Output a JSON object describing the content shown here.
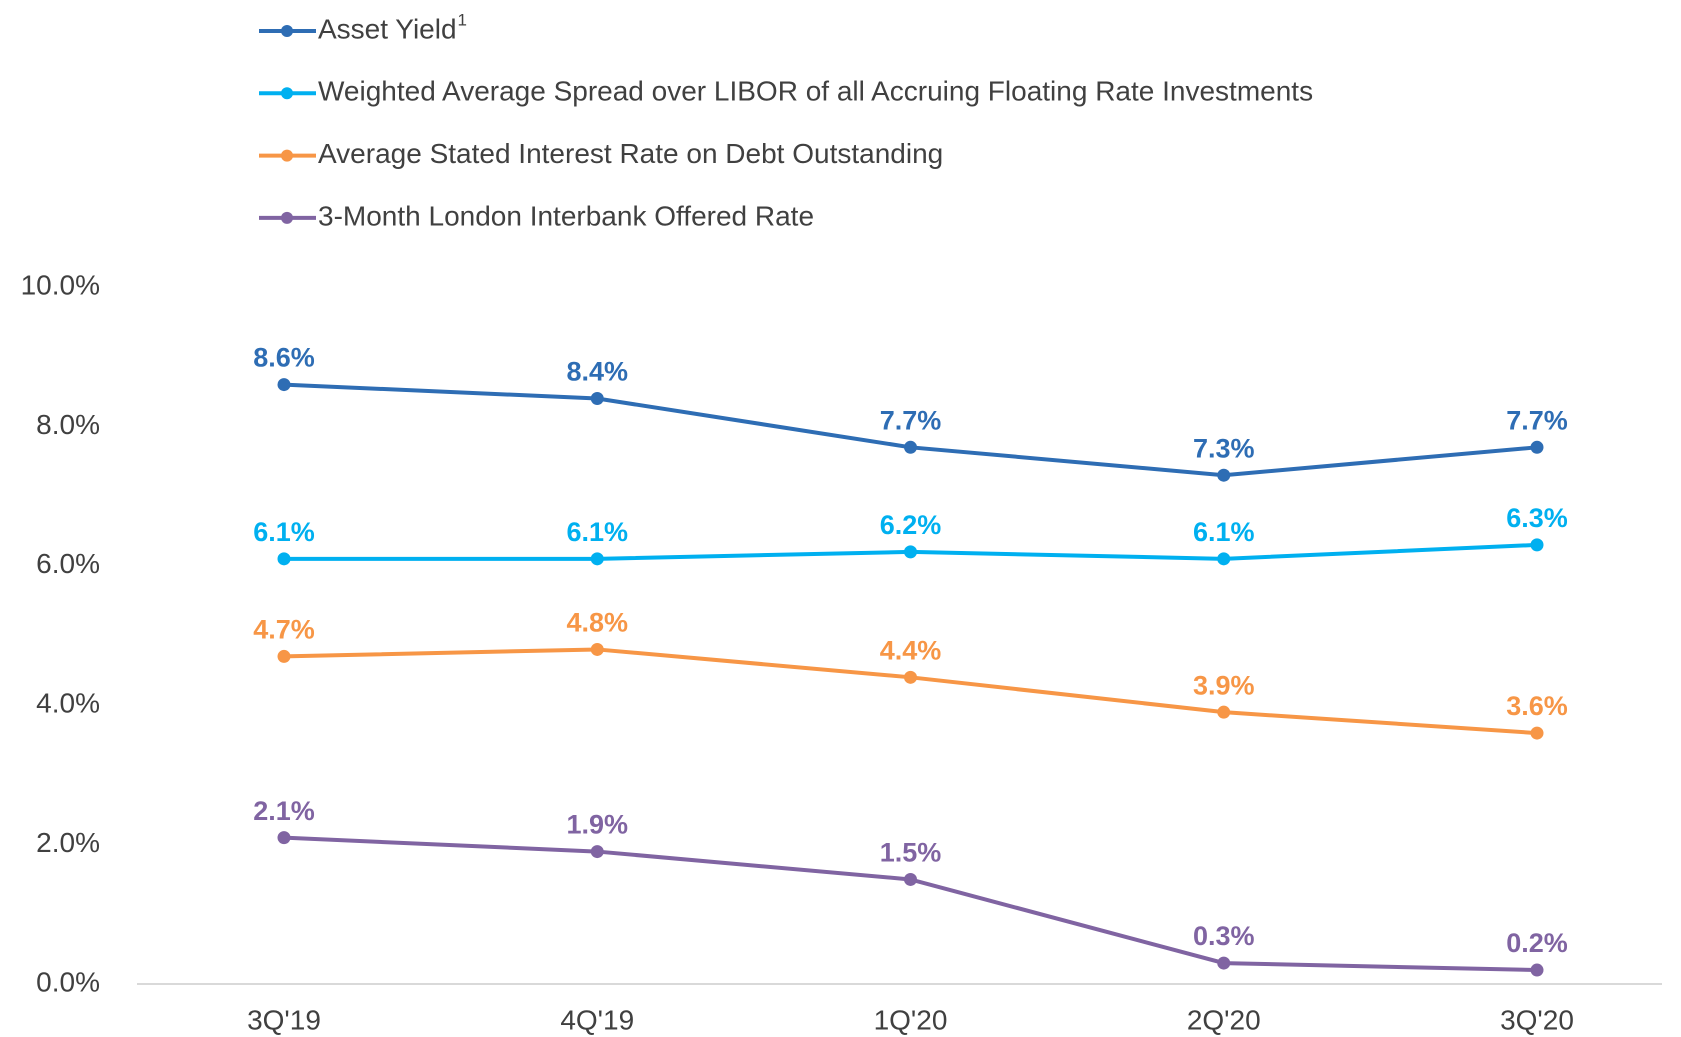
{
  "chart_data": {
    "type": "line",
    "categories": [
      "3Q'19",
      "4Q'19",
      "1Q'20",
      "2Q'20",
      "3Q'20"
    ],
    "series": [
      {
        "name": "Asset Yield",
        "footnote_marker": "1",
        "color": "#2e6db4",
        "values": [
          8.6,
          8.4,
          7.7,
          7.3,
          7.7
        ],
        "value_labels": [
          "8.6%",
          "8.4%",
          "7.7%",
          "7.3%",
          "7.7%"
        ]
      },
      {
        "name": "Weighted Average Spread over LIBOR of all Accruing Floating Rate Investments",
        "color": "#00b0f0",
        "values": [
          6.1,
          6.1,
          6.2,
          6.1,
          6.3
        ],
        "value_labels": [
          "6.1%",
          "6.1%",
          "6.2%",
          "6.1%",
          "6.3%"
        ]
      },
      {
        "name": "Average Stated Interest Rate on Debt Outstanding",
        "color": "#f79646",
        "values": [
          4.7,
          4.8,
          4.4,
          3.9,
          3.6
        ],
        "value_labels": [
          "4.7%",
          "4.8%",
          "4.4%",
          "3.9%",
          "3.6%"
        ]
      },
      {
        "name": "3-Month London Interbank Offered Rate",
        "color": "#8064a2",
        "values": [
          2.1,
          1.9,
          1.5,
          0.3,
          0.2
        ],
        "value_labels": [
          "2.1%",
          "1.9%",
          "1.5%",
          "0.3%",
          "0.2%"
        ]
      }
    ],
    "ylim": [
      0,
      10
    ],
    "yticks": [
      {
        "value": 0,
        "label": "0.0%"
      },
      {
        "value": 2,
        "label": "2.0%"
      },
      {
        "value": 4,
        "label": "4.0%"
      },
      {
        "value": 6,
        "label": "6.0%"
      },
      {
        "value": 8,
        "label": "8.0%"
      },
      {
        "value": 10,
        "label": "10.0%"
      }
    ],
    "grid": false,
    "legend": "top"
  }
}
